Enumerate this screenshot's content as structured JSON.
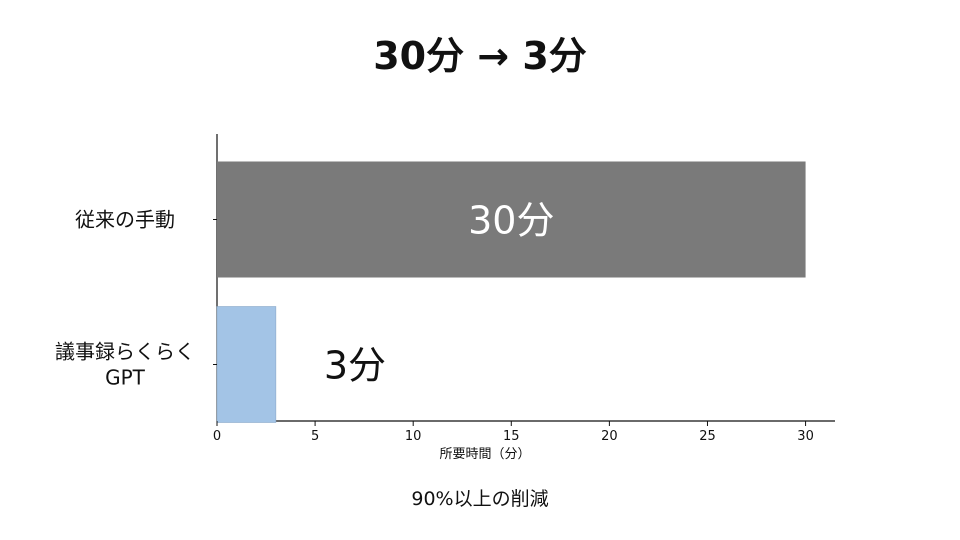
{
  "title": "30分 → 3分",
  "footnote": "90%以上の削減",
  "chart_data": {
    "type": "bar",
    "orientation": "horizontal",
    "categories": [
      [
        "従来の手動"
      ],
      [
        "議事録らくらく",
        "GPT"
      ]
    ],
    "values": [
      30,
      3
    ],
    "value_labels": [
      "30分",
      "3分"
    ],
    "bar_colors": [
      "#7a7a7a",
      "#a3c4e6"
    ],
    "value_label_colors": [
      "#ffffff",
      "#111111"
    ],
    "xlabel": "所要時間（分）",
    "ylabel": "",
    "xlim": [
      0,
      31.5
    ],
    "xticks": [
      0,
      5,
      10,
      15,
      20,
      25,
      30
    ],
    "grid": false
  }
}
